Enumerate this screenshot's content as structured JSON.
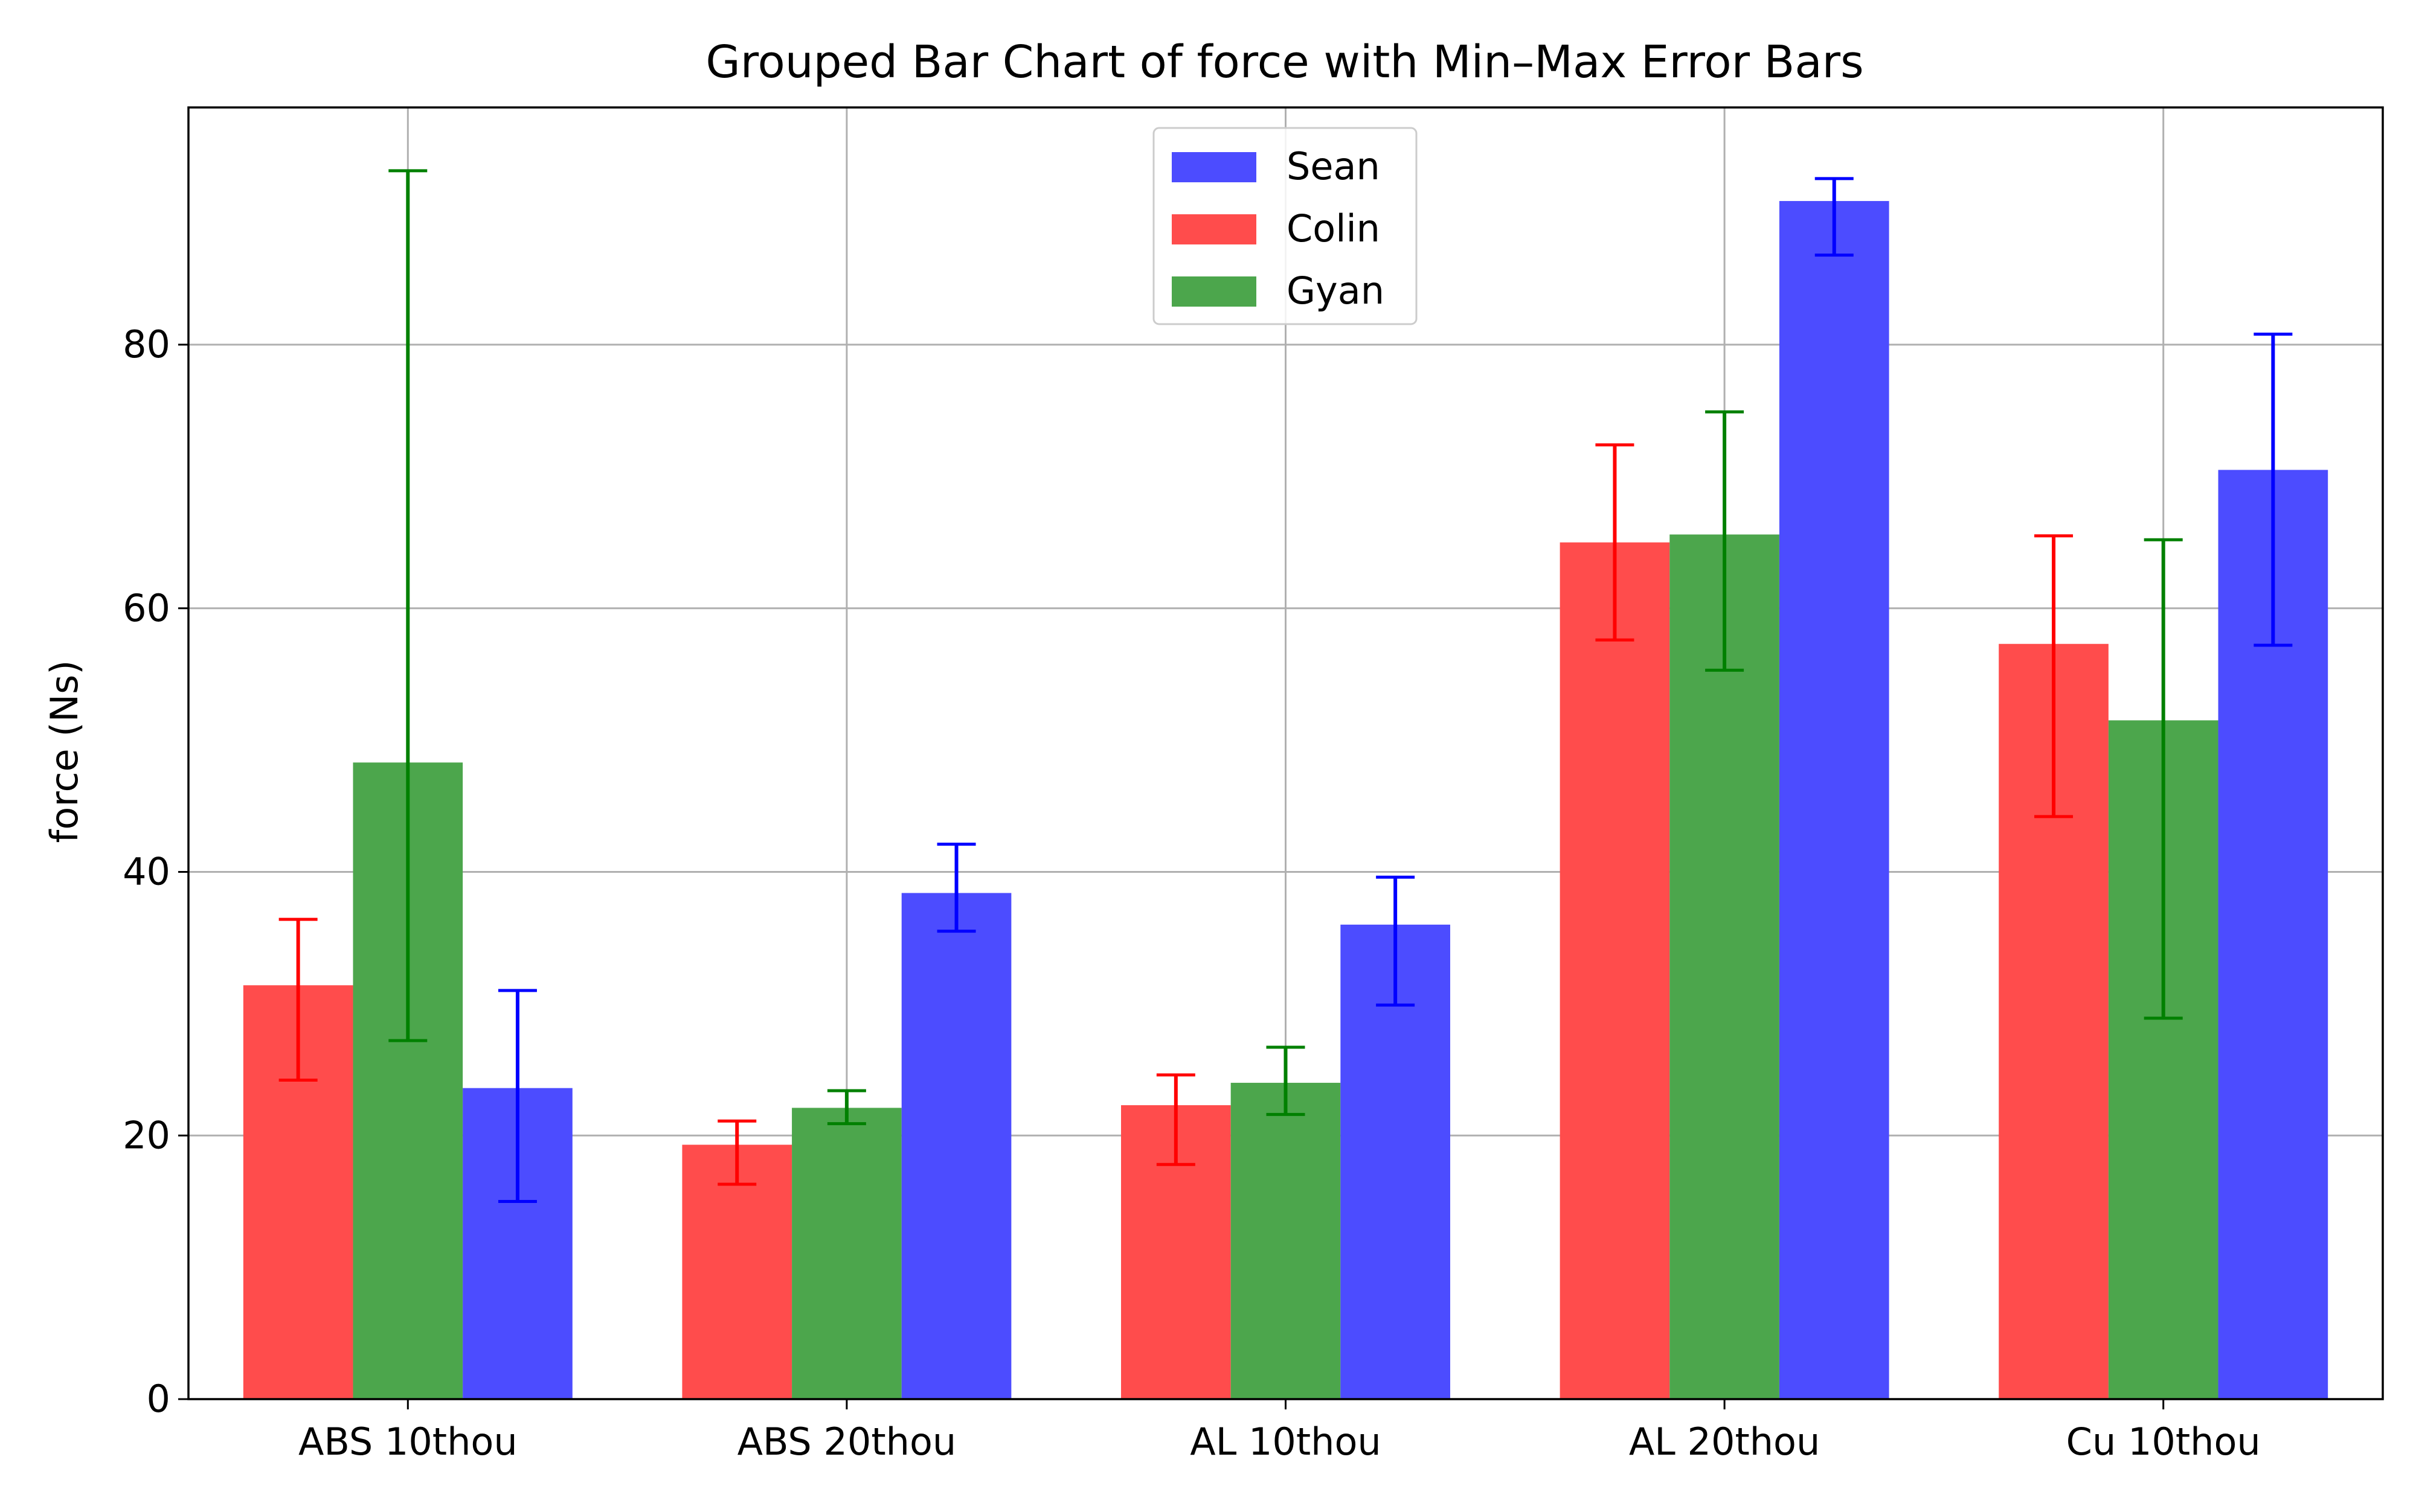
{
  "chart_data": {
    "type": "bar",
    "title": "Grouped Bar Chart of force with Min–Max Error Bars",
    "xlabel": "",
    "ylabel": "force (Ns)",
    "ylim": [
      0,
      98
    ],
    "yticks": [
      0,
      20,
      40,
      60,
      80
    ],
    "grid": true,
    "legend_position": "top-center",
    "categories": [
      "ABS 10thou",
      "ABS 20thou",
      "AL 10thou",
      "AL 20thou",
      "Cu 10thou"
    ],
    "series": [
      {
        "name": "Colin",
        "color": "#ff4c4c",
        "error_color": "#ff0000",
        "values": [
          31.4,
          19.3,
          22.3,
          65.0,
          57.3
        ],
        "min": [
          24.2,
          16.3,
          17.8,
          57.6,
          44.2
        ],
        "max": [
          36.4,
          21.1,
          24.6,
          72.4,
          65.5
        ]
      },
      {
        "name": "Gyan",
        "color": "#4ca64c",
        "error_color": "#008000",
        "values": [
          48.3,
          22.1,
          24.0,
          65.6,
          51.5
        ],
        "min": [
          27.2,
          20.9,
          21.6,
          55.3,
          28.9
        ],
        "max": [
          93.2,
          23.4,
          26.7,
          74.9,
          65.2
        ]
      },
      {
        "name": "Sean",
        "color": "#4c4cff",
        "error_color": "#0000ff",
        "values": [
          23.6,
          38.4,
          36.0,
          90.9,
          70.5
        ],
        "min": [
          15.0,
          35.5,
          29.9,
          86.8,
          57.2
        ],
        "max": [
          31.0,
          42.1,
          39.6,
          92.6,
          80.8
        ]
      }
    ],
    "legend_order": [
      "Sean",
      "Colin",
      "Gyan"
    ]
  }
}
